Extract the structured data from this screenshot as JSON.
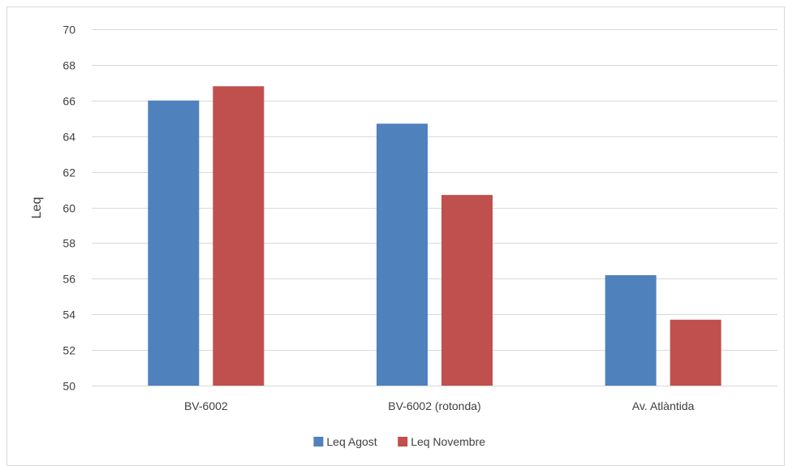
{
  "chart_data": {
    "type": "bar",
    "categories": [
      "BV-6002",
      "BV-6002 (rotonda)",
      "Av. Atlàntida"
    ],
    "series": [
      {
        "name": "Leq Agost",
        "values": [
          66.0,
          64.7,
          56.2
        ],
        "color": "#4F81BD"
      },
      {
        "name": "Leq Novembre",
        "values": [
          66.8,
          60.7,
          53.7
        ],
        "color": "#C0504D"
      }
    ],
    "ylabel": "Leq",
    "xlabel": "",
    "ylim": [
      50,
      70
    ],
    "yticks": [
      50,
      52,
      54,
      56,
      58,
      60,
      62,
      64,
      66,
      68,
      70
    ],
    "grid": true,
    "legend_position": "bottom"
  }
}
